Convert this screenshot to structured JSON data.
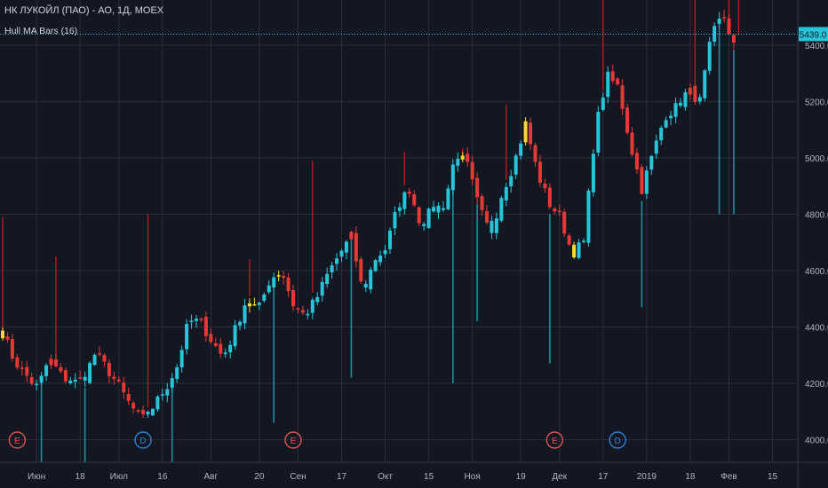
{
  "header": {
    "title": "НК ЛУКОЙЛ (ПАО) - АО, 1Д, MOEX",
    "indicator": "Hull MA Bars (16)"
  },
  "colors": {
    "background": "#131722",
    "grid": "#2a2e39",
    "up": "#26c6da",
    "down": "#e53935",
    "neutral": "#fdd835",
    "last_price_line": "#26c6da",
    "last_price_label_bg": "#26c6da",
    "earnings_marker": "#e05252",
    "dividend_marker": "#2f7fd4"
  },
  "chart_data": {
    "type": "candlestick",
    "title": "НК ЛУКОЙЛ (ПАО) - АО, 1Д, MOEX",
    "legend": [
      "Hull MA Bars (16)"
    ],
    "ylim": [
      3920,
      5560
    ],
    "y_ticks": [
      "4000.0",
      "4200.0",
      "4400.0",
      "4600.0",
      "4800.0",
      "5000.0",
      "5200.0",
      "5400.0"
    ],
    "x_ticks": [
      {
        "label": "Июн",
        "index": 7
      },
      {
        "label": "18",
        "index": 16
      },
      {
        "label": "Июл",
        "index": 24
      },
      {
        "label": "16",
        "index": 33
      },
      {
        "label": "Авг",
        "index": 43
      },
      {
        "label": "20",
        "index": 53
      },
      {
        "label": "Сен",
        "index": 61
      },
      {
        "label": "17",
        "index": 70
      },
      {
        "label": "Окт",
        "index": 79
      },
      {
        "label": "15",
        "index": 88
      },
      {
        "label": "Ноя",
        "index": 97
      },
      {
        "label": "19",
        "index": 107
      },
      {
        "label": "Дек",
        "index": 115
      },
      {
        "label": "17",
        "index": 124
      },
      {
        "label": "2019",
        "index": 133
      },
      {
        "label": "18",
        "index": 142
      },
      {
        "label": "Фев",
        "index": 150
      },
      {
        "label": "15",
        "index": 159
      }
    ],
    "last_price": "5439.0",
    "last_price_value": 5439,
    "markers": [
      {
        "label": "E",
        "index": 3,
        "kind": "earnings"
      },
      {
        "label": "D",
        "index": 29,
        "kind": "dividend"
      },
      {
        "label": "E",
        "index": 60,
        "kind": "earnings"
      },
      {
        "label": "E",
        "index": 114,
        "kind": "earnings"
      },
      {
        "label": "D",
        "index": 127,
        "kind": "dividend"
      }
    ],
    "anchor_closes": [
      4380,
      4280,
      4230,
      4180,
      4290,
      4230,
      4200,
      4220,
      4310,
      4250,
      4190,
      4120,
      4070,
      4120,
      4180,
      4260,
      4420,
      4420,
      4350,
      4290,
      4390,
      4500,
      4460,
      4570,
      4600,
      4480,
      4440,
      4500,
      4590,
      4660,
      4720,
      4520,
      4640,
      4680,
      4830,
      4890,
      4760,
      4820,
      4830,
      5020,
      4970,
      4820,
      4730,
      4880,
      4980,
      5120,
      4950,
      4840,
      4790,
      4660,
      4700,
      5100,
      5290,
      5250,
      5050,
      4890,
      5020,
      5150,
      5180,
      5240,
      5200,
      5430,
      5510,
      5390
    ],
    "candles_per_segment": 2.4,
    "up_wicks": [
      {
        "index": 0,
        "high": 4790
      },
      {
        "index": 11,
        "high": 4650
      },
      {
        "index": 30,
        "high": 4800
      },
      {
        "index": 51,
        "high": 4640
      },
      {
        "index": 64,
        "high": 4990
      },
      {
        "index": 83,
        "high": 5020
      },
      {
        "index": 95,
        "high": 5000
      },
      {
        "index": 104,
        "high": 5190
      },
      {
        "index": 124,
        "high": 5560
      },
      {
        "index": 143,
        "high": 5560
      },
      {
        "index": 150,
        "high": 5560
      },
      {
        "index": 152,
        "high": 5560
      }
    ],
    "down_wicks": [
      {
        "index": 8,
        "low": 3920
      },
      {
        "index": 17,
        "low": 3920
      },
      {
        "index": 35,
        "low": 3920
      },
      {
        "index": 56,
        "low": 4060
      },
      {
        "index": 72,
        "low": 4220
      },
      {
        "index": 93,
        "low": 4200
      },
      {
        "index": 98,
        "low": 4420
      },
      {
        "index": 113,
        "low": 4270
      },
      {
        "index": 132,
        "low": 4470
      },
      {
        "index": 148,
        "low": 4800
      },
      {
        "index": 151,
        "low": 4800
      }
    ]
  }
}
